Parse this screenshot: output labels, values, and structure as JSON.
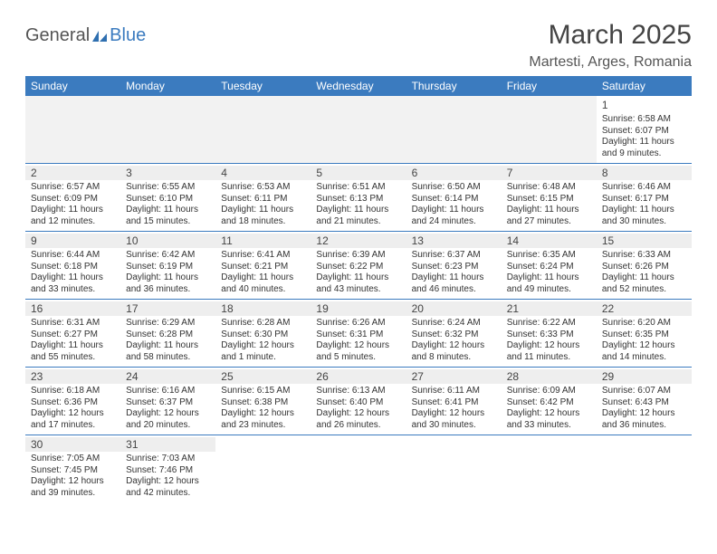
{
  "logo": {
    "general": "General",
    "blue": "Blue"
  },
  "header": {
    "title": "March 2025",
    "location": "Martesti, Arges, Romania"
  },
  "colors": {
    "header_bg": "#3b7bbf",
    "header_text": "#ffffff",
    "row_divider": "#3b7bbf",
    "daynum_bg": "#eeeeee",
    "empty_bg": "#f2f2f2"
  },
  "weekdays": [
    "Sunday",
    "Monday",
    "Tuesday",
    "Wednesday",
    "Thursday",
    "Friday",
    "Saturday"
  ],
  "weeks": [
    [
      {
        "day": "",
        "lines": []
      },
      {
        "day": "",
        "lines": []
      },
      {
        "day": "",
        "lines": []
      },
      {
        "day": "",
        "lines": []
      },
      {
        "day": "",
        "lines": []
      },
      {
        "day": "",
        "lines": []
      },
      {
        "day": "1",
        "lines": [
          "Sunrise: 6:58 AM",
          "Sunset: 6:07 PM",
          "Daylight: 11 hours and 9 minutes."
        ]
      }
    ],
    [
      {
        "day": "2",
        "lines": [
          "Sunrise: 6:57 AM",
          "Sunset: 6:09 PM",
          "Daylight: 11 hours and 12 minutes."
        ]
      },
      {
        "day": "3",
        "lines": [
          "Sunrise: 6:55 AM",
          "Sunset: 6:10 PM",
          "Daylight: 11 hours and 15 minutes."
        ]
      },
      {
        "day": "4",
        "lines": [
          "Sunrise: 6:53 AM",
          "Sunset: 6:11 PM",
          "Daylight: 11 hours and 18 minutes."
        ]
      },
      {
        "day": "5",
        "lines": [
          "Sunrise: 6:51 AM",
          "Sunset: 6:13 PM",
          "Daylight: 11 hours and 21 minutes."
        ]
      },
      {
        "day": "6",
        "lines": [
          "Sunrise: 6:50 AM",
          "Sunset: 6:14 PM",
          "Daylight: 11 hours and 24 minutes."
        ]
      },
      {
        "day": "7",
        "lines": [
          "Sunrise: 6:48 AM",
          "Sunset: 6:15 PM",
          "Daylight: 11 hours and 27 minutes."
        ]
      },
      {
        "day": "8",
        "lines": [
          "Sunrise: 6:46 AM",
          "Sunset: 6:17 PM",
          "Daylight: 11 hours and 30 minutes."
        ]
      }
    ],
    [
      {
        "day": "9",
        "lines": [
          "Sunrise: 6:44 AM",
          "Sunset: 6:18 PM",
          "Daylight: 11 hours and 33 minutes."
        ]
      },
      {
        "day": "10",
        "lines": [
          "Sunrise: 6:42 AM",
          "Sunset: 6:19 PM",
          "Daylight: 11 hours and 36 minutes."
        ]
      },
      {
        "day": "11",
        "lines": [
          "Sunrise: 6:41 AM",
          "Sunset: 6:21 PM",
          "Daylight: 11 hours and 40 minutes."
        ]
      },
      {
        "day": "12",
        "lines": [
          "Sunrise: 6:39 AM",
          "Sunset: 6:22 PM",
          "Daylight: 11 hours and 43 minutes."
        ]
      },
      {
        "day": "13",
        "lines": [
          "Sunrise: 6:37 AM",
          "Sunset: 6:23 PM",
          "Daylight: 11 hours and 46 minutes."
        ]
      },
      {
        "day": "14",
        "lines": [
          "Sunrise: 6:35 AM",
          "Sunset: 6:24 PM",
          "Daylight: 11 hours and 49 minutes."
        ]
      },
      {
        "day": "15",
        "lines": [
          "Sunrise: 6:33 AM",
          "Sunset: 6:26 PM",
          "Daylight: 11 hours and 52 minutes."
        ]
      }
    ],
    [
      {
        "day": "16",
        "lines": [
          "Sunrise: 6:31 AM",
          "Sunset: 6:27 PM",
          "Daylight: 11 hours and 55 minutes."
        ]
      },
      {
        "day": "17",
        "lines": [
          "Sunrise: 6:29 AM",
          "Sunset: 6:28 PM",
          "Daylight: 11 hours and 58 minutes."
        ]
      },
      {
        "day": "18",
        "lines": [
          "Sunrise: 6:28 AM",
          "Sunset: 6:30 PM",
          "Daylight: 12 hours and 1 minute."
        ]
      },
      {
        "day": "19",
        "lines": [
          "Sunrise: 6:26 AM",
          "Sunset: 6:31 PM",
          "Daylight: 12 hours and 5 minutes."
        ]
      },
      {
        "day": "20",
        "lines": [
          "Sunrise: 6:24 AM",
          "Sunset: 6:32 PM",
          "Daylight: 12 hours and 8 minutes."
        ]
      },
      {
        "day": "21",
        "lines": [
          "Sunrise: 6:22 AM",
          "Sunset: 6:33 PM",
          "Daylight: 12 hours and 11 minutes."
        ]
      },
      {
        "day": "22",
        "lines": [
          "Sunrise: 6:20 AM",
          "Sunset: 6:35 PM",
          "Daylight: 12 hours and 14 minutes."
        ]
      }
    ],
    [
      {
        "day": "23",
        "lines": [
          "Sunrise: 6:18 AM",
          "Sunset: 6:36 PM",
          "Daylight: 12 hours and 17 minutes."
        ]
      },
      {
        "day": "24",
        "lines": [
          "Sunrise: 6:16 AM",
          "Sunset: 6:37 PM",
          "Daylight: 12 hours and 20 minutes."
        ]
      },
      {
        "day": "25",
        "lines": [
          "Sunrise: 6:15 AM",
          "Sunset: 6:38 PM",
          "Daylight: 12 hours and 23 minutes."
        ]
      },
      {
        "day": "26",
        "lines": [
          "Sunrise: 6:13 AM",
          "Sunset: 6:40 PM",
          "Daylight: 12 hours and 26 minutes."
        ]
      },
      {
        "day": "27",
        "lines": [
          "Sunrise: 6:11 AM",
          "Sunset: 6:41 PM",
          "Daylight: 12 hours and 30 minutes."
        ]
      },
      {
        "day": "28",
        "lines": [
          "Sunrise: 6:09 AM",
          "Sunset: 6:42 PM",
          "Daylight: 12 hours and 33 minutes."
        ]
      },
      {
        "day": "29",
        "lines": [
          "Sunrise: 6:07 AM",
          "Sunset: 6:43 PM",
          "Daylight: 12 hours and 36 minutes."
        ]
      }
    ],
    [
      {
        "day": "30",
        "lines": [
          "Sunrise: 7:05 AM",
          "Sunset: 7:45 PM",
          "Daylight: 12 hours and 39 minutes."
        ]
      },
      {
        "day": "31",
        "lines": [
          "Sunrise: 7:03 AM",
          "Sunset: 7:46 PM",
          "Daylight: 12 hours and 42 minutes."
        ]
      },
      {
        "day": "",
        "lines": []
      },
      {
        "day": "",
        "lines": []
      },
      {
        "day": "",
        "lines": []
      },
      {
        "day": "",
        "lines": []
      },
      {
        "day": "",
        "lines": []
      }
    ]
  ]
}
